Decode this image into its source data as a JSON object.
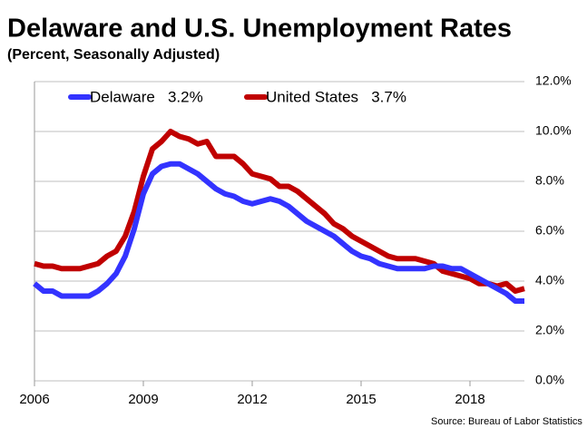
{
  "chart_data": {
    "type": "line",
    "title": "Delaware and U.S. Unemployment Rates",
    "subtitle": "(Percent, Seasonally Adjusted)",
    "source": "Source: Bureau of Labor Statistics",
    "x": [
      2006,
      2006.25,
      2006.5,
      2006.75,
      2007,
      2007.25,
      2007.5,
      2007.75,
      2008,
      2008.25,
      2008.5,
      2008.75,
      2009,
      2009.25,
      2009.5,
      2009.75,
      2010,
      2010.25,
      2010.5,
      2010.75,
      2011,
      2011.25,
      2011.5,
      2011.75,
      2012,
      2012.25,
      2012.5,
      2012.75,
      2013,
      2013.25,
      2013.5,
      2013.75,
      2014,
      2014.25,
      2014.5,
      2014.75,
      2015,
      2015.25,
      2015.5,
      2015.75,
      2016,
      2016.25,
      2016.5,
      2016.75,
      2017,
      2017.25,
      2017.5,
      2017.75,
      2018,
      2018.25,
      2018.5,
      2018.75,
      2019,
      2019.25,
      2019.5
    ],
    "series": [
      {
        "name": "United States   3.7%",
        "color": "#c00000",
        "values": [
          4.7,
          4.6,
          4.6,
          4.5,
          4.5,
          4.5,
          4.6,
          4.7,
          5.0,
          5.2,
          5.8,
          6.8,
          8.2,
          9.3,
          9.6,
          10.0,
          9.8,
          9.7,
          9.5,
          9.6,
          9.0,
          9.0,
          9.0,
          8.7,
          8.3,
          8.2,
          8.1,
          7.8,
          7.8,
          7.6,
          7.3,
          7.0,
          6.7,
          6.3,
          6.1,
          5.8,
          5.6,
          5.4,
          5.2,
          5.0,
          4.9,
          4.9,
          4.9,
          4.8,
          4.7,
          4.4,
          4.3,
          4.2,
          4.1,
          3.9,
          3.9,
          3.8,
          3.9,
          3.6,
          3.7
        ]
      },
      {
        "name": "Delaware   3.2%",
        "color": "#3333ff",
        "values": [
          3.9,
          3.6,
          3.6,
          3.4,
          3.4,
          3.4,
          3.4,
          3.6,
          3.9,
          4.3,
          5.0,
          6.1,
          7.5,
          8.3,
          8.6,
          8.7,
          8.7,
          8.5,
          8.3,
          8.0,
          7.7,
          7.5,
          7.4,
          7.2,
          7.1,
          7.2,
          7.3,
          7.2,
          7.0,
          6.7,
          6.4,
          6.2,
          6.0,
          5.8,
          5.5,
          5.2,
          5.0,
          4.9,
          4.7,
          4.6,
          4.5,
          4.5,
          4.5,
          4.5,
          4.6,
          4.6,
          4.5,
          4.5,
          4.3,
          4.1,
          3.9,
          3.7,
          3.5,
          3.2,
          3.2
        ]
      }
    ],
    "xlim": [
      2006,
      2019.5
    ],
    "xticks": [
      2006,
      2009,
      2012,
      2015,
      2018
    ],
    "ylim": [
      0,
      12
    ],
    "yticks": [
      {
        "value": 0,
        "label": "0.0%"
      },
      {
        "value": 2,
        "label": "2.0%"
      },
      {
        "value": 4,
        "label": "4.0%"
      },
      {
        "value": 6,
        "label": "6.0%"
      },
      {
        "value": 8,
        "label": "8.0%"
      },
      {
        "value": 10,
        "label": "10.0%"
      },
      {
        "value": 12,
        "label": "12.0%"
      }
    ],
    "grid": true
  }
}
